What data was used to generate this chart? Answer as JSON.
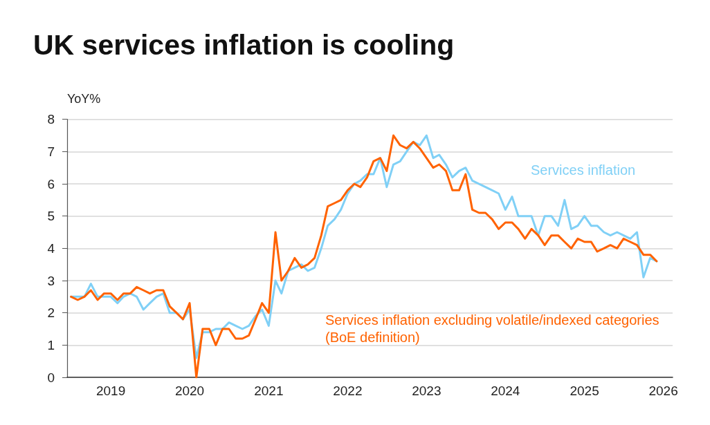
{
  "chart_data": {
    "type": "line",
    "title": "UK services inflation is cooling",
    "ylabel": "YoY%",
    "x": [
      "2018-07",
      "2018-08",
      "2018-09",
      "2018-10",
      "2018-11",
      "2018-12",
      "2019-01",
      "2019-02",
      "2019-03",
      "2019-04",
      "2019-05",
      "2019-06",
      "2019-07",
      "2019-08",
      "2019-09",
      "2019-10",
      "2019-11",
      "2019-12",
      "2020-01",
      "2020-02",
      "2020-03",
      "2020-04",
      "2020-05",
      "2020-06",
      "2020-07",
      "2020-08",
      "2020-09",
      "2020-10",
      "2020-11",
      "2020-12",
      "2021-01",
      "2021-02",
      "2021-03",
      "2021-04",
      "2021-05",
      "2021-06",
      "2021-07",
      "2021-08",
      "2021-09",
      "2021-10",
      "2021-11",
      "2021-12",
      "2022-01",
      "2022-02",
      "2022-03",
      "2022-04",
      "2022-05",
      "2022-06",
      "2022-07",
      "2022-08",
      "2022-09",
      "2022-10",
      "2022-11",
      "2022-12",
      "2023-01",
      "2023-02",
      "2023-03",
      "2023-04",
      "2023-05",
      "2023-06",
      "2023-07",
      "2023-08",
      "2023-09",
      "2023-10",
      "2023-11",
      "2023-12",
      "2024-01",
      "2024-02",
      "2024-03",
      "2024-04",
      "2024-05",
      "2024-06",
      "2024-07",
      "2024-08",
      "2024-09",
      "2024-10",
      "2024-11",
      "2024-12",
      "2025-01",
      "2025-02",
      "2025-03",
      "2025-04",
      "2025-05",
      "2025-06",
      "2025-07",
      "2025-08",
      "2025-09",
      "2025-10",
      "2025-11",
      "2025-12"
    ],
    "series": [
      {
        "name": "Services inflation",
        "color": "#80d0f6",
        "values": [
          2.5,
          2.5,
          2.5,
          2.9,
          2.5,
          2.5,
          2.5,
          2.3,
          2.5,
          2.6,
          2.5,
          2.1,
          2.3,
          2.5,
          2.6,
          2.0,
          2.0,
          1.8,
          2.1,
          0.6,
          1.4,
          1.4,
          1.5,
          1.5,
          1.7,
          1.6,
          1.5,
          1.6,
          1.9,
          2.1,
          1.6,
          3.0,
          2.6,
          3.3,
          3.4,
          3.5,
          3.3,
          3.4,
          4.0,
          4.7,
          4.9,
          5.2,
          5.7,
          6.0,
          6.1,
          6.3,
          6.3,
          6.8,
          5.9,
          6.6,
          6.7,
          7.0,
          7.3,
          7.2,
          7.5,
          6.8,
          6.9,
          6.6,
          6.2,
          6.4,
          6.5,
          6.1,
          6.0,
          5.9,
          5.8,
          5.7,
          5.2,
          5.6,
          5.0,
          5.0,
          5.0,
          4.4,
          5.0,
          5.0,
          4.7,
          5.5,
          4.6,
          4.7,
          5.0,
          4.7,
          4.7,
          4.5,
          4.4,
          4.5,
          4.4,
          4.3,
          4.5,
          3.1,
          3.7,
          3.6
        ]
      },
      {
        "name": "Services inflation excluding volatile/indexed categories (BoE definition)",
        "color": "#ff6200",
        "values": [
          2.5,
          2.4,
          2.5,
          2.7,
          2.4,
          2.6,
          2.6,
          2.4,
          2.6,
          2.6,
          2.8,
          2.7,
          2.6,
          2.7,
          2.7,
          2.2,
          2.0,
          1.8,
          2.3,
          0.0,
          1.5,
          1.5,
          1.0,
          1.5,
          1.5,
          1.2,
          1.2,
          1.3,
          1.8,
          2.3,
          2.0,
          4.5,
          3.0,
          3.3,
          3.7,
          3.4,
          3.5,
          3.7,
          4.4,
          5.3,
          5.4,
          5.5,
          5.8,
          6.0,
          5.9,
          6.2,
          6.7,
          6.8,
          6.4,
          7.5,
          7.2,
          7.1,
          7.3,
          7.1,
          6.8,
          6.5,
          6.6,
          6.4,
          5.8,
          5.8,
          6.3,
          5.2,
          5.1,
          5.1,
          4.9,
          4.6,
          4.8,
          4.8,
          4.6,
          4.3,
          4.6,
          4.4,
          4.1,
          4.4,
          4.4,
          4.2,
          4.0,
          4.3,
          4.2,
          4.2,
          3.9,
          4.0,
          4.1,
          4.0,
          4.3,
          4.2,
          4.1,
          3.8,
          3.8,
          3.6
        ]
      }
    ],
    "xlim": [
      "2018-06-13",
      "2026-02-13"
    ],
    "xticks": [
      "2019",
      "2020",
      "2021",
      "2022",
      "2023",
      "2024",
      "2025",
      "2026"
    ],
    "ylim": [
      0,
      8
    ],
    "yticks": [
      0,
      1,
      2,
      3,
      4,
      5,
      6,
      7,
      8
    ],
    "grid": "y",
    "marker": "none",
    "line_style": "solid"
  }
}
